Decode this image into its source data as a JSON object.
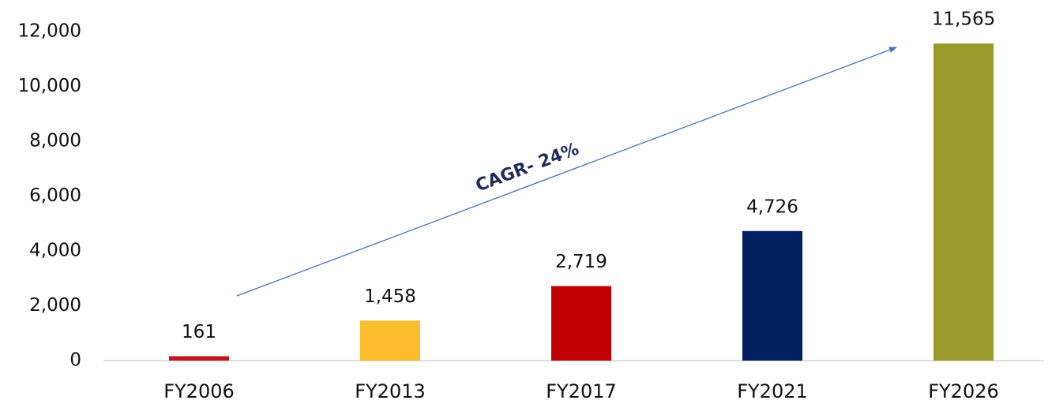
{
  "chart_data": {
    "type": "bar",
    "categories": [
      "FY2006",
      "FY2013",
      "FY2017",
      "FY2021",
      "FY2026"
    ],
    "values": [
      161,
      1458,
      2719,
      4726,
      11565
    ],
    "value_labels": [
      "161",
      "1,458",
      "2,719",
      "4,726",
      "11,565"
    ],
    "colors": [
      "#c0171f",
      "#fbbc2d",
      "#c00000",
      "#002060",
      "#989a29"
    ],
    "ylim": [
      0,
      12000
    ],
    "yticks": [
      0,
      {
        "value": 2000,
        "label": "2,000"
      },
      {
        "value": 4000,
        "label": "4,000"
      },
      {
        "value": 6000,
        "label": "6,000"
      },
      {
        "value": 8000,
        "label": "8,000"
      },
      {
        "value": 10000,
        "label": "10,000"
      },
      {
        "value": 12000,
        "label": "12,000"
      }
    ],
    "grid": false,
    "annotation": "CAGR- 24%"
  }
}
